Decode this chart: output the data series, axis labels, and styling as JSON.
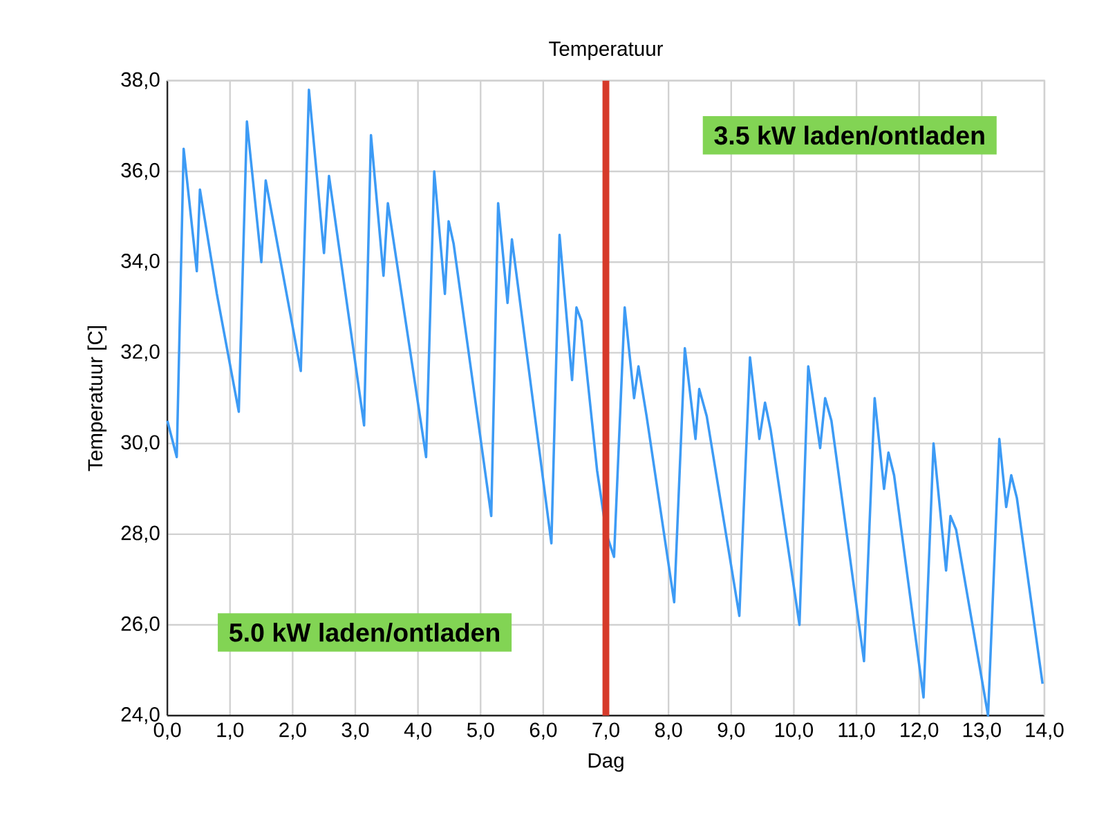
{
  "chart_data": {
    "type": "line",
    "title": "Temperatuur",
    "xlabel": "Dag",
    "ylabel": "Temperatuur [C]",
    "x": [
      0,
      0.15,
      0.26,
      0.47,
      0.52,
      0.79,
      1.14,
      1.27,
      1.5,
      1.57,
      2.13,
      2.26,
      2.5,
      2.58,
      3.14,
      3.25,
      3.45,
      3.52,
      4.13,
      4.26,
      4.43,
      4.49,
      4.57,
      5.17,
      5.28,
      5.43,
      5.5,
      6.13,
      6.26,
      6.46,
      6.53,
      6.61,
      6.86,
      7.01,
      7.13,
      7.3,
      7.45,
      7.52,
      7.65,
      8.09,
      8.26,
      8.43,
      8.49,
      8.61,
      9.13,
      9.3,
      9.45,
      9.54,
      9.63,
      10.09,
      10.23,
      10.42,
      10.5,
      10.6,
      11.12,
      11.29,
      11.44,
      11.51,
      11.6,
      12.07,
      12.23,
      12.43,
      12.5,
      12.59,
      13.1,
      13.28,
      13.39,
      13.47,
      13.56,
      13.97
    ],
    "series": [
      {
        "color": "#3d9bf5",
        "values": [
          30.5,
          29.7,
          36.5,
          33.8,
          35.6,
          33.3,
          30.7,
          37.1,
          34.0,
          35.8,
          31.6,
          37.8,
          34.2,
          35.9,
          30.4,
          36.8,
          33.7,
          35.3,
          29.7,
          36.0,
          33.3,
          34.9,
          34.4,
          28.4,
          35.3,
          33.1,
          34.5,
          27.8,
          34.6,
          31.4,
          33.0,
          32.7,
          29.4,
          28.0,
          27.5,
          33.0,
          31.0,
          31.7,
          30.6,
          26.5,
          32.1,
          30.1,
          31.2,
          30.6,
          26.2,
          31.9,
          30.1,
          30.9,
          30.3,
          26.0,
          31.7,
          29.9,
          31.0,
          30.5,
          25.2,
          31.0,
          29.0,
          29.8,
          29.3,
          24.4,
          30.0,
          27.2,
          28.4,
          28.1,
          24.0,
          30.1,
          28.6,
          29.3,
          28.8,
          24.7
        ]
      }
    ],
    "xlim": [
      0,
      14
    ],
    "xticks": [
      {
        "value": 0,
        "label": "0,0"
      },
      {
        "value": 1,
        "label": "1,0"
      },
      {
        "value": 2,
        "label": "2,0"
      },
      {
        "value": 3,
        "label": "3,0"
      },
      {
        "value": 4,
        "label": "4,0"
      },
      {
        "value": 5,
        "label": "5,0"
      },
      {
        "value": 6,
        "label": "6,0"
      },
      {
        "value": 7,
        "label": "7,0"
      },
      {
        "value": 8,
        "label": "8,0"
      },
      {
        "value": 9,
        "label": "9,0"
      },
      {
        "value": 10,
        "label": "10,0"
      },
      {
        "value": 11,
        "label": "11,0"
      },
      {
        "value": 12,
        "label": "12,0"
      },
      {
        "value": 13,
        "label": "13,0"
      },
      {
        "value": 14,
        "label": "14,0"
      }
    ],
    "ylim": [
      24,
      38
    ],
    "yticks": [
      {
        "value": 24,
        "label": "24,0"
      },
      {
        "value": 26,
        "label": "26,0"
      },
      {
        "value": 28,
        "label": "28,0"
      },
      {
        "value": 30,
        "label": "30,0"
      },
      {
        "value": 32,
        "label": "32,0"
      },
      {
        "value": 34,
        "label": "34,0"
      },
      {
        "value": 36,
        "label": "36,0"
      },
      {
        "value": 38,
        "label": "38,0"
      }
    ],
    "grid": true,
    "ref_lines": [
      {
        "axis": "x",
        "value": 7,
        "color": "#d63a2a"
      }
    ],
    "annotations": [
      "3.5 kW laden/ontladen",
      "5.0 kW laden/ontladen"
    ]
  }
}
